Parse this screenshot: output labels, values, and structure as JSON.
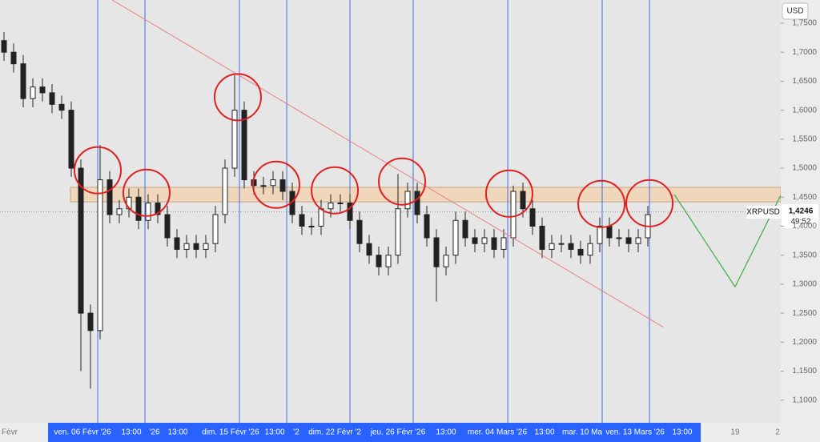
{
  "chart_data": {
    "type": "candlestick",
    "symbol": "XRPUSD",
    "currency": "USD",
    "last_price": {
      "value": 1.4246,
      "label": "1,4246"
    },
    "countdown": "49:52",
    "open": [
      1.72,
      1.7,
      1.68,
      1.62,
      1.64,
      1.63,
      1.61,
      1.6,
      1.5,
      1.25,
      1.22,
      1.48,
      1.42,
      1.43,
      1.45,
      1.41,
      1.44,
      1.42,
      1.38,
      1.36,
      1.37,
      1.36,
      1.37,
      1.42,
      1.5,
      1.6,
      1.48,
      1.47,
      1.47,
      1.48,
      1.46,
      1.42,
      1.4,
      1.4,
      1.43,
      1.44,
      1.44,
      1.41,
      1.37,
      1.35,
      1.33,
      1.35,
      1.43,
      1.46,
      1.42,
      1.38,
      1.33,
      1.35,
      1.41,
      1.38,
      1.37,
      1.38,
      1.36,
      1.38,
      1.46,
      1.43,
      1.4,
      1.36,
      1.37,
      1.37,
      1.36,
      1.35,
      1.37,
      1.4,
      1.38,
      1.38,
      1.37,
      1.38
    ],
    "high": [
      1.735,
      1.715,
      1.695,
      1.655,
      1.655,
      1.645,
      1.625,
      1.615,
      1.515,
      1.265,
      1.54,
      1.495,
      1.445,
      1.465,
      1.465,
      1.455,
      1.455,
      1.435,
      1.395,
      1.385,
      1.385,
      1.385,
      1.435,
      1.515,
      1.66,
      1.615,
      1.495,
      1.485,
      1.495,
      1.495,
      1.475,
      1.435,
      1.415,
      1.445,
      1.455,
      1.455,
      1.455,
      1.425,
      1.385,
      1.365,
      1.365,
      1.49,
      1.475,
      1.475,
      1.435,
      1.395,
      1.365,
      1.425,
      1.425,
      1.395,
      1.395,
      1.395,
      1.395,
      1.47,
      1.475,
      1.445,
      1.415,
      1.385,
      1.385,
      1.385,
      1.375,
      1.385,
      1.415,
      1.415,
      1.395,
      1.395,
      1.395,
      1.435
    ],
    "low": [
      1.685,
      1.665,
      1.605,
      1.605,
      1.615,
      1.595,
      1.585,
      1.485,
      1.15,
      1.12,
      1.205,
      1.405,
      1.405,
      1.415,
      1.395,
      1.395,
      1.405,
      1.365,
      1.345,
      1.345,
      1.345,
      1.345,
      1.355,
      1.405,
      1.485,
      1.465,
      1.455,
      1.455,
      1.455,
      1.445,
      1.405,
      1.385,
      1.385,
      1.385,
      1.415,
      1.425,
      1.395,
      1.355,
      1.335,
      1.315,
      1.315,
      1.335,
      1.415,
      1.405,
      1.365,
      1.27,
      1.315,
      1.335,
      1.365,
      1.355,
      1.355,
      1.345,
      1.345,
      1.365,
      1.415,
      1.385,
      1.345,
      1.345,
      1.355,
      1.345,
      1.335,
      1.335,
      1.355,
      1.365,
      1.365,
      1.355,
      1.355,
      1.365
    ],
    "close": [
      1.7,
      1.68,
      1.62,
      1.64,
      1.63,
      1.61,
      1.6,
      1.5,
      1.25,
      1.22,
      1.48,
      1.42,
      1.43,
      1.45,
      1.41,
      1.44,
      1.42,
      1.38,
      1.36,
      1.37,
      1.36,
      1.37,
      1.42,
      1.5,
      1.6,
      1.48,
      1.47,
      1.47,
      1.48,
      1.46,
      1.42,
      1.4,
      1.4,
      1.43,
      1.44,
      1.44,
      1.41,
      1.37,
      1.35,
      1.33,
      1.35,
      1.43,
      1.46,
      1.42,
      1.38,
      1.33,
      1.35,
      1.41,
      1.38,
      1.37,
      1.38,
      1.36,
      1.38,
      1.46,
      1.43,
      1.4,
      1.36,
      1.37,
      1.37,
      1.36,
      1.35,
      1.37,
      1.4,
      1.38,
      1.38,
      1.37,
      1.38,
      1.42
    ],
    "candle_color": "#222222",
    "xlim": [
      -0.417,
      80.833
    ],
    "ylim": [
      1.061,
      1.79
    ],
    "yticks": [
      {
        "value": 1.75,
        "label": "1,7500"
      },
      {
        "value": 1.7,
        "label": "1,7000"
      },
      {
        "value": 1.65,
        "label": "1,6500"
      },
      {
        "value": 1.6,
        "label": "1,6000"
      },
      {
        "value": 1.55,
        "label": "1,5500"
      },
      {
        "value": 1.5,
        "label": "1,5000"
      },
      {
        "value": 1.45,
        "label": "1,4500"
      },
      {
        "value": 1.4,
        "label": "1,4000"
      },
      {
        "value": 1.35,
        "label": "1,3500"
      },
      {
        "value": 1.3,
        "label": "1,3000"
      },
      {
        "value": 1.25,
        "label": "1,2500"
      },
      {
        "value": 1.2,
        "label": "1,2000"
      },
      {
        "value": 1.15,
        "label": "1,1500"
      },
      {
        "value": 1.1,
        "label": "1,1000"
      }
    ],
    "xticks": [
      {
        "value": 0.58,
        "label": "Févr"
      },
      {
        "value": 8.17,
        "label": "ven. 06 Févr '26"
      },
      {
        "value": 13.25,
        "label": "13:00"
      },
      {
        "value": 15.67,
        "label": "'26"
      },
      {
        "value": 18.08,
        "label": "13:00"
      },
      {
        "value": 23.58,
        "label": "dim. 15 Févr '26"
      },
      {
        "value": 28.17,
        "label": "13:00"
      },
      {
        "value": 30.42,
        "label": "'2"
      },
      {
        "value": 34.42,
        "label": "dim. 22 Févr '2"
      },
      {
        "value": 41,
        "label": "jeu. 26 Févr '26"
      },
      {
        "value": 46,
        "label": "13:00"
      },
      {
        "value": 51.33,
        "label": "mer. 04 Mars '26"
      },
      {
        "value": 56.25,
        "label": "13:00"
      },
      {
        "value": 60.17,
        "label": "mar. 10 Ma"
      },
      {
        "value": 65.67,
        "label": "ven. 13 Mars '26"
      },
      {
        "value": 70.58,
        "label": "13:00"
      },
      {
        "value": 76.08,
        "label": "19"
      },
      {
        "value": 80.5,
        "label": "2"
      }
    ],
    "vertical_lines": [
      9.75,
      14.67,
      24.5,
      29.42,
      36,
      42.58,
      52.42,
      62.25,
      67.17
    ],
    "vline_color": "#3b6fe0",
    "zone": [
      1.442,
      1.467
    ],
    "zone_color": "#f3d2b0",
    "trend_line": {
      "x": [
        11.25,
        68.58
      ],
      "y": [
        1.79,
        1.2262
      ],
      "color": "#e88080"
    },
    "circles": {
      "x": [
        9.75,
        14.83,
        24.33,
        28.33,
        34.42,
        41.42,
        52.58,
        62.17,
        67.17
      ],
      "y": [
        1.4964,
        1.4576,
        1.6225,
        1.4714,
        1.4618,
        1.477,
        1.4562,
        1.4382,
        1.4396
      ],
      "color": "#e02020"
    },
    "projection": {
      "x": [
        69.75,
        76.08,
        80.83
      ],
      "y": [
        1.4548,
        1.2955,
        1.4534
      ],
      "color": "#4caf50"
    }
  }
}
